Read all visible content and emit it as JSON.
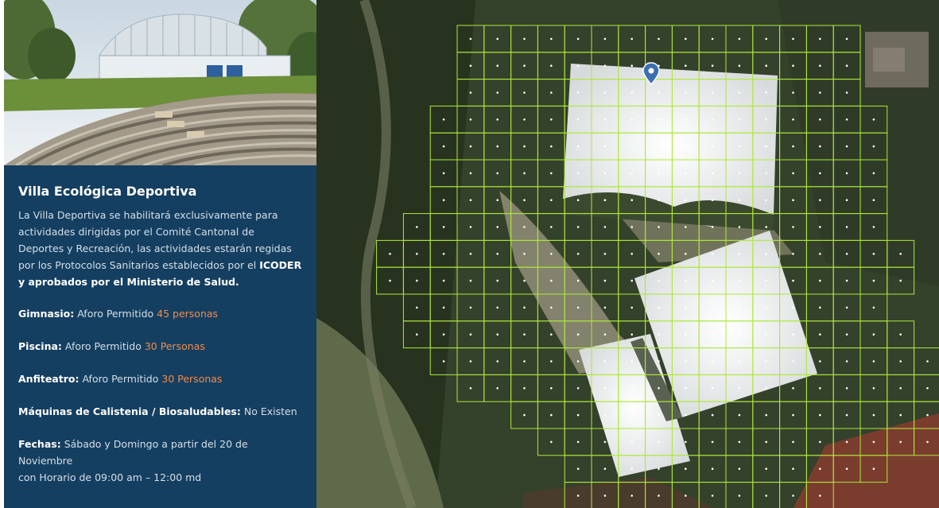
{
  "venue": {
    "title": "Villa Ecológica Deportiva",
    "intro_text": "La Villa Deportiva se habilitará exclusivamente para actividades dirigidas por el Comité Cantonal de Deportes y Recreación, las actividades estarán regidas por los Protocolos Sanitarios establecidos por el",
    "intro_bold_1": "ICODER y aprobados por el Ministerio de Salud."
  },
  "facilities": [
    {
      "name": "Gimnasio:",
      "text": "Aforo Permitido",
      "value": "45 personas"
    },
    {
      "name": "Piscina:",
      "text": "Aforo Permitido",
      "value": "30 Personas"
    },
    {
      "name": "Anfiteatro:",
      "text": "Aforo Permitido",
      "value": "30 Personas"
    },
    {
      "name": "Máquinas de Calistenia / Biosaludables:",
      "text": "No Existen",
      "value": ""
    }
  ],
  "schedule": {
    "label": "Fechas:",
    "line1": "Sábado y Domingo a partir del 20 de Noviembre",
    "line2": "con Horario de 09:00 am – 12:00 md"
  },
  "map": {
    "grid_color": "#aee83a",
    "marker_color": "#3a6fb0",
    "marker_icon": "map-pin-icon"
  },
  "colors": {
    "panel_bg": "#153f61",
    "accent": "#f08c4a"
  }
}
